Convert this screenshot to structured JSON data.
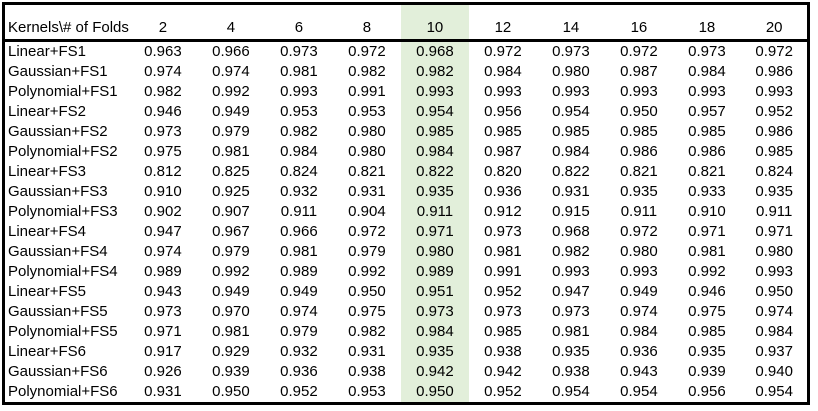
{
  "sheet": {
    "corner_header": "Kernels\\# of Folds",
    "fold_columns": [
      "2",
      "4",
      "6",
      "8",
      "10",
      "12",
      "14",
      "16",
      "18",
      "20"
    ],
    "highlight": {
      "column_label": "10",
      "column_index": 4,
      "color": "#e2efda"
    },
    "rows": [
      {
        "label": "Linear+FS1",
        "values": [
          "0.963",
          "0.966",
          "0.973",
          "0.972",
          "0.968",
          "0.972",
          "0.973",
          "0.972",
          "0.973",
          "0.972"
        ]
      },
      {
        "label": "Gaussian+FS1",
        "values": [
          "0.974",
          "0.974",
          "0.981",
          "0.982",
          "0.982",
          "0.984",
          "0.980",
          "0.987",
          "0.984",
          "0.986"
        ]
      },
      {
        "label": "Polynomial+FS1",
        "values": [
          "0.982",
          "0.992",
          "0.993",
          "0.991",
          "0.993",
          "0.993",
          "0.993",
          "0.993",
          "0.993",
          "0.993"
        ]
      },
      {
        "label": "Linear+FS2",
        "values": [
          "0.946",
          "0.949",
          "0.953",
          "0.953",
          "0.954",
          "0.956",
          "0.954",
          "0.950",
          "0.957",
          "0.952"
        ]
      },
      {
        "label": "Gaussian+FS2",
        "values": [
          "0.973",
          "0.979",
          "0.982",
          "0.980",
          "0.985",
          "0.985",
          "0.985",
          "0.985",
          "0.985",
          "0.986"
        ]
      },
      {
        "label": "Polynomial+FS2",
        "values": [
          "0.975",
          "0.981",
          "0.984",
          "0.980",
          "0.984",
          "0.987",
          "0.984",
          "0.986",
          "0.986",
          "0.985"
        ]
      },
      {
        "label": "Linear+FS3",
        "values": [
          "0.812",
          "0.825",
          "0.824",
          "0.821",
          "0.822",
          "0.820",
          "0.822",
          "0.821",
          "0.821",
          "0.824"
        ]
      },
      {
        "label": "Gaussian+FS3",
        "values": [
          "0.910",
          "0.925",
          "0.932",
          "0.931",
          "0.935",
          "0.936",
          "0.931",
          "0.935",
          "0.933",
          "0.935"
        ]
      },
      {
        "label": "Polynomial+FS3",
        "values": [
          "0.902",
          "0.907",
          "0.911",
          "0.904",
          "0.911",
          "0.912",
          "0.915",
          "0.911",
          "0.910",
          "0.911"
        ]
      },
      {
        "label": "Linear+FS4",
        "values": [
          "0.947",
          "0.967",
          "0.966",
          "0.972",
          "0.971",
          "0.973",
          "0.968",
          "0.972",
          "0.971",
          "0.971"
        ]
      },
      {
        "label": "Gaussian+FS4",
        "values": [
          "0.974",
          "0.979",
          "0.981",
          "0.979",
          "0.980",
          "0.981",
          "0.982",
          "0.980",
          "0.981",
          "0.980"
        ]
      },
      {
        "label": "Polynomial+FS4",
        "values": [
          "0.989",
          "0.992",
          "0.989",
          "0.992",
          "0.989",
          "0.991",
          "0.993",
          "0.993",
          "0.992",
          "0.993"
        ]
      },
      {
        "label": "Linear+FS5",
        "values": [
          "0.943",
          "0.949",
          "0.949",
          "0.950",
          "0.951",
          "0.952",
          "0.947",
          "0.949",
          "0.946",
          "0.950"
        ]
      },
      {
        "label": "Gaussian+FS5",
        "values": [
          "0.973",
          "0.970",
          "0.974",
          "0.975",
          "0.973",
          "0.973",
          "0.973",
          "0.974",
          "0.975",
          "0.974"
        ]
      },
      {
        "label": "Polynomial+FS5",
        "values": [
          "0.971",
          "0.981",
          "0.979",
          "0.982",
          "0.984",
          "0.985",
          "0.981",
          "0.984",
          "0.985",
          "0.984"
        ]
      },
      {
        "label": "Linear+FS6",
        "values": [
          "0.917",
          "0.929",
          "0.932",
          "0.931",
          "0.935",
          "0.938",
          "0.935",
          "0.936",
          "0.935",
          "0.937"
        ]
      },
      {
        "label": "Gaussian+FS6",
        "values": [
          "0.926",
          "0.939",
          "0.936",
          "0.938",
          "0.942",
          "0.942",
          "0.938",
          "0.943",
          "0.939",
          "0.940"
        ]
      },
      {
        "label": "Polynomial+FS6",
        "values": [
          "0.931",
          "0.950",
          "0.952",
          "0.953",
          "0.950",
          "0.952",
          "0.954",
          "0.954",
          "0.956",
          "0.954"
        ]
      }
    ]
  }
}
